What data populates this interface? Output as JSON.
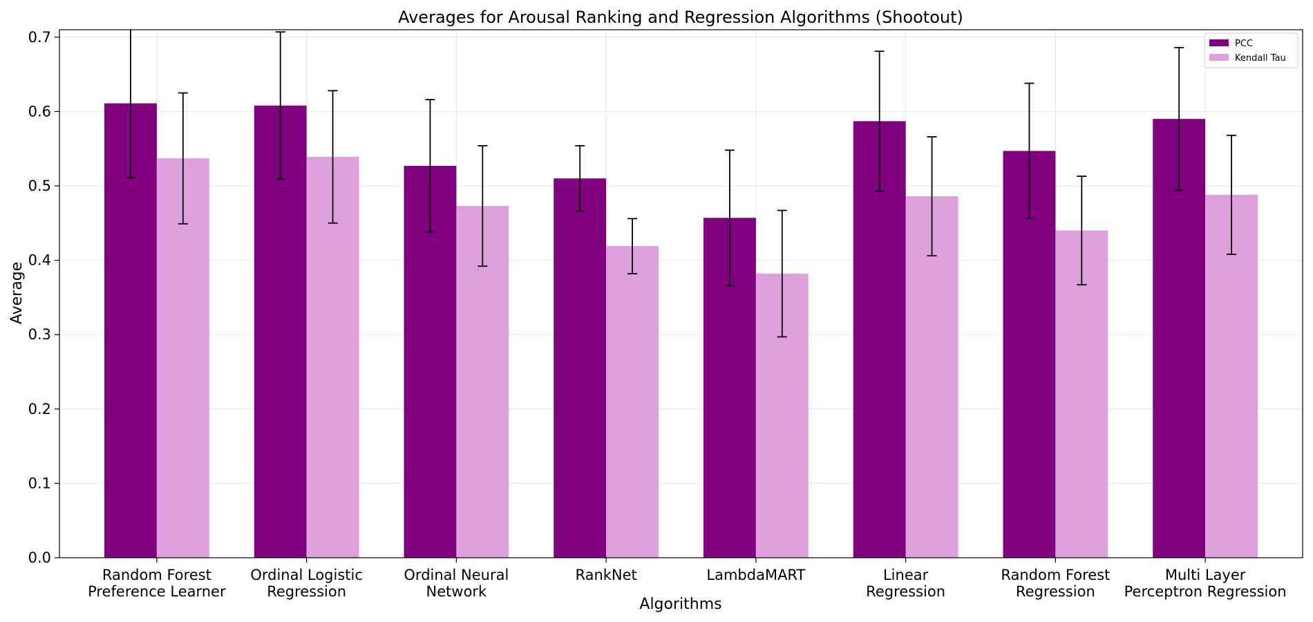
{
  "chart_data": {
    "type": "bar",
    "title": "Averages for Arousal Ranking and Regression Algorithms (Shootout)",
    "xlabel": "Algorithms",
    "ylabel": "Average",
    "ylim": [
      0,
      0.71
    ],
    "yticks": [
      0.0,
      0.1,
      0.2,
      0.3,
      0.4,
      0.5,
      0.6,
      0.7
    ],
    "ytick_labels": [
      "0.0",
      "0.1",
      "0.2",
      "0.3",
      "0.4",
      "0.5",
      "0.6",
      "0.7"
    ],
    "grid": true,
    "legend_position": "top-right",
    "categories": [
      [
        "Random Forest",
        "Preference Learner"
      ],
      [
        "Ordinal Logistic",
        "Regression"
      ],
      [
        "Ordinal Neural",
        "Network"
      ],
      [
        "RankNet"
      ],
      [
        "LambdaMART"
      ],
      [
        "Linear",
        "Regression"
      ],
      [
        "Random Forest",
        "Regression"
      ],
      [
        "Multi Layer",
        "Perceptron Regression"
      ]
    ],
    "series": [
      {
        "name": "PCC",
        "color": "#800080",
        "values": [
          0.611,
          0.608,
          0.527,
          0.51,
          0.457,
          0.587,
          0.547,
          0.59
        ],
        "errors": [
          0.1,
          0.099,
          0.089,
          0.044,
          0.091,
          0.094,
          0.091,
          0.096
        ]
      },
      {
        "name": "Kendall Tau",
        "color": "#dda0dd",
        "values": [
          0.537,
          0.539,
          0.473,
          0.419,
          0.382,
          0.486,
          0.44,
          0.488
        ],
        "errors": [
          0.088,
          0.089,
          0.081,
          0.037,
          0.085,
          0.08,
          0.073,
          0.08
        ]
      }
    ]
  }
}
